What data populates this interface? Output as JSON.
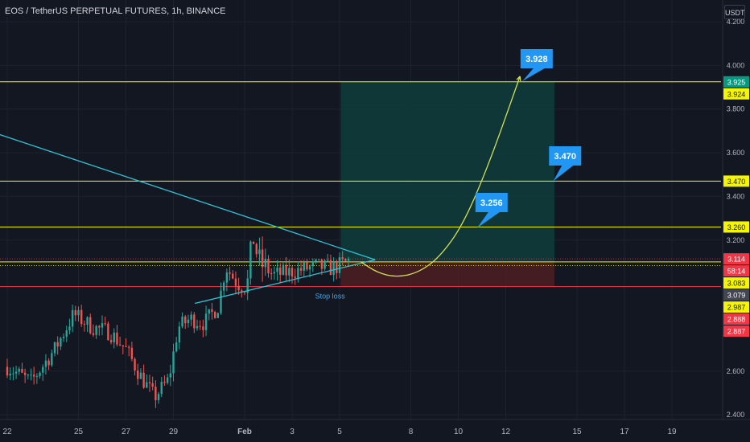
{
  "header": {
    "title": "EOS / TetherUS PERPETUAL FUTURES, 1h, BINANCE",
    "currency_label": "USDT"
  },
  "colors": {
    "background": "#131722",
    "grid": "#1e222d",
    "axis_text": "#b2b5be",
    "candle_up": "#26a69a",
    "candle_down": "#ef5350",
    "level_line": "#f5f500",
    "stop_line": "#f23645",
    "trendline": "#2ec4d6",
    "profit_zone": "#0f3b3a",
    "loss_zone": "#4a1e24",
    "callout": "#2196f3",
    "path_curve": "#d4e157"
  },
  "chart_data": {
    "type": "candlestick",
    "symbol": "EOS / TetherUS PERPETUAL FUTURES",
    "interval": "1h",
    "exchange": "BINANCE",
    "x_axis_ticks": [
      "22",
      "25",
      "27",
      "29",
      "Feb",
      "3",
      "5",
      "8",
      "10",
      "12",
      "15",
      "17",
      "19"
    ],
    "y_axis_ticks": [
      "4.200",
      "4.000",
      "3.800",
      "3.600",
      "3.400",
      "3.200",
      "2.600",
      "2.400"
    ],
    "ylim": [
      2.35,
      4.24
    ],
    "price_labels": [
      {
        "value": 3.925,
        "text": "3.925",
        "bg": "#089981",
        "fg": "#ffffff"
      },
      {
        "value": 3.924,
        "text": "3.924",
        "bg": "#f5f500",
        "fg": "#131722"
      },
      {
        "value": 3.47,
        "text": "3.470",
        "bg": "#f5f500",
        "fg": "#131722"
      },
      {
        "value": 3.26,
        "text": "3.260",
        "bg": "#f5f500",
        "fg": "#131722"
      },
      {
        "value": 3.114,
        "text": "3.114",
        "bg": "#f23645",
        "fg": "#ffffff"
      },
      {
        "value": 3.098,
        "text": "58:14",
        "bg": "#f23645",
        "fg": "#ffffff"
      },
      {
        "value": 3.083,
        "text": "3.083",
        "bg": "#f5f500",
        "fg": "#131722"
      },
      {
        "value": 3.079,
        "text": "3.079",
        "bg": "#434651",
        "fg": "#ffffff"
      },
      {
        "value": 2.987,
        "text": "2.987",
        "bg": "#f5f500",
        "fg": "#131722"
      },
      {
        "value": 2.888,
        "text": "2.888",
        "bg": "#f23645",
        "fg": "#ffffff"
      },
      {
        "value": 2.887,
        "text": "2.887",
        "bg": "#f23645",
        "fg": "#ffffff"
      }
    ],
    "horizontal_levels": [
      {
        "value": 3.925,
        "color": "#f5f500"
      },
      {
        "value": 3.47,
        "color": "#f5f500"
      },
      {
        "value": 3.26,
        "color": "#f5f500"
      },
      {
        "value": 3.1,
        "color": "#f5f500"
      },
      {
        "value": 2.987,
        "color": "#f23645"
      }
    ],
    "targets": [
      {
        "value": 3.928,
        "label": "3.928"
      },
      {
        "value": 3.47,
        "label": "3.470"
      },
      {
        "value": 3.256,
        "label": "3.256"
      }
    ],
    "stop_loss_label": "Stop loss",
    "entry_price": 3.1,
    "take_profit": 3.925,
    "stop_loss": 2.987,
    "triangle": {
      "upper_line": [
        [
          -0.5,
          3.69
        ],
        [
          15.5,
          3.11
        ]
      ],
      "lower_line": [
        [
          7.9,
          2.91
        ],
        [
          15.5,
          3.11
        ]
      ]
    },
    "projected_path": [
      [
        14.9,
        3.1
      ],
      [
        15.6,
        3.05
      ],
      [
        16.4,
        3.03
      ],
      [
        17.3,
        3.05
      ],
      [
        18.2,
        3.12
      ],
      [
        19.2,
        3.27
      ],
      [
        20.3,
        3.55
      ],
      [
        21.6,
        3.95
      ]
    ]
  }
}
